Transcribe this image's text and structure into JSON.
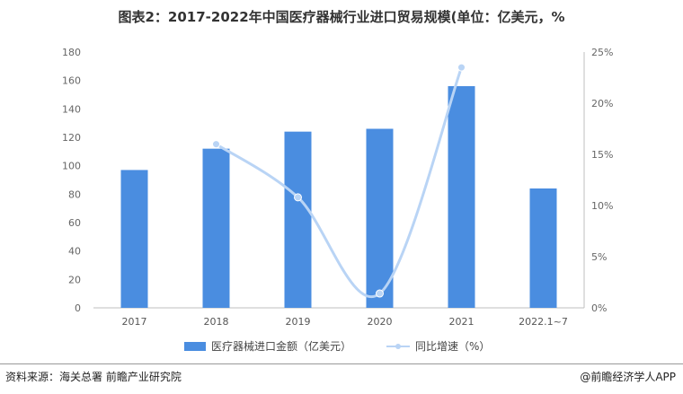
{
  "title": "图表2：2017-2022年中国医疗器械行业进口贸易规模(单位：亿美元，%",
  "source": "资料来源：海关总署 前瞻产业研究院",
  "brand": "@前瞻经济学人APP",
  "colors": {
    "bar": "#4a8de0",
    "line": "#b9d4f5",
    "point": "#b9d4f5"
  },
  "chart_data": {
    "type": "bar",
    "categories": [
      "2017",
      "2018",
      "2019",
      "2020",
      "2021",
      "2022.1~7"
    ],
    "series": [
      {
        "name": "医疗器械进口金额（亿美元）",
        "type": "bar",
        "axis": "left",
        "values": [
          97,
          112,
          124,
          126,
          156,
          84
        ]
      },
      {
        "name": "同比增速（%）",
        "type": "line",
        "axis": "right",
        "smooth": true,
        "values": [
          null,
          16,
          10.8,
          1.4,
          23.5,
          null
        ]
      }
    ],
    "ylim": [
      0,
      180
    ],
    "yticks": [
      "0",
      "20",
      "40",
      "60",
      "80",
      "100",
      "120",
      "140",
      "160",
      "180"
    ],
    "y2lim": [
      0,
      25
    ],
    "y2ticks": [
      "0%",
      "5%",
      "10%",
      "15%",
      "20%",
      "25%"
    ],
    "legend_position": "bottom",
    "grid": false
  }
}
